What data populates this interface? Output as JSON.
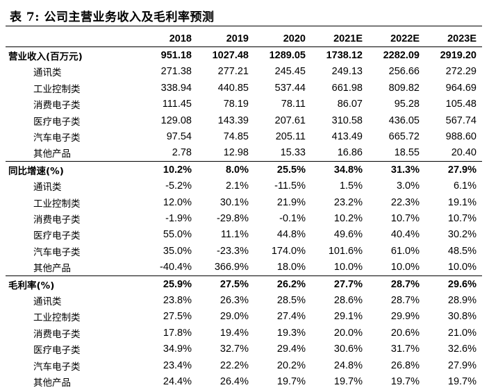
{
  "title": "表 7: 公司主营业务收入及毛利率预测",
  "years": [
    "2018",
    "2019",
    "2020",
    "2021E",
    "2022E",
    "2023E"
  ],
  "sections": [
    {
      "label": "营业收入(百万元)",
      "values": [
        "951.18",
        "1027.48",
        "1289.05",
        "1738.12",
        "2282.09",
        "2919.20"
      ],
      "rows": [
        {
          "label": "通讯类",
          "values": [
            "271.38",
            "277.21",
            "245.45",
            "249.13",
            "256.66",
            "272.29"
          ]
        },
        {
          "label": "工业控制类",
          "values": [
            "338.94",
            "440.85",
            "537.44",
            "661.98",
            "809.82",
            "964.69"
          ]
        },
        {
          "label": "消费电子类",
          "values": [
            "111.45",
            "78.19",
            "78.11",
            "86.07",
            "95.28",
            "105.48"
          ]
        },
        {
          "label": "医疗电子类",
          "values": [
            "129.08",
            "143.39",
            "207.61",
            "310.58",
            "436.05",
            "567.74"
          ]
        },
        {
          "label": "汽车电子类",
          "values": [
            "97.54",
            "74.85",
            "205.11",
            "413.49",
            "665.72",
            "988.60"
          ]
        },
        {
          "label": "其他产品",
          "values": [
            "2.78",
            "12.98",
            "15.33",
            "16.86",
            "18.55",
            "20.40"
          ]
        }
      ]
    },
    {
      "label": "同比增速(%)",
      "values": [
        "10.2%",
        "8.0%",
        "25.5%",
        "34.8%",
        "31.3%",
        "27.9%"
      ],
      "rows": [
        {
          "label": "通讯类",
          "values": [
            "-5.2%",
            "2.1%",
            "-11.5%",
            "1.5%",
            "3.0%",
            "6.1%"
          ]
        },
        {
          "label": "工业控制类",
          "values": [
            "12.0%",
            "30.1%",
            "21.9%",
            "23.2%",
            "22.3%",
            "19.1%"
          ]
        },
        {
          "label": "消费电子类",
          "values": [
            "-1.9%",
            "-29.8%",
            "-0.1%",
            "10.2%",
            "10.7%",
            "10.7%"
          ]
        },
        {
          "label": "医疗电子类",
          "values": [
            "55.0%",
            "11.1%",
            "44.8%",
            "49.6%",
            "40.4%",
            "30.2%"
          ]
        },
        {
          "label": "汽车电子类",
          "values": [
            "35.0%",
            "-23.3%",
            "174.0%",
            "101.6%",
            "61.0%",
            "48.5%"
          ]
        },
        {
          "label": "其他产品",
          "values": [
            "-40.4%",
            "366.9%",
            "18.0%",
            "10.0%",
            "10.0%",
            "10.0%"
          ]
        }
      ]
    },
    {
      "label": "毛利率(%)",
      "values": [
        "25.9%",
        "27.5%",
        "26.2%",
        "27.7%",
        "28.7%",
        "29.6%"
      ],
      "rows": [
        {
          "label": "通讯类",
          "values": [
            "23.8%",
            "26.3%",
            "28.5%",
            "28.6%",
            "28.7%",
            "28.9%"
          ]
        },
        {
          "label": "工业控制类",
          "values": [
            "27.5%",
            "29.0%",
            "27.4%",
            "29.1%",
            "29.9%",
            "30.8%"
          ]
        },
        {
          "label": "消费电子类",
          "values": [
            "17.8%",
            "19.4%",
            "19.3%",
            "20.0%",
            "20.6%",
            "21.0%"
          ]
        },
        {
          "label": "医疗电子类",
          "values": [
            "34.9%",
            "32.7%",
            "29.4%",
            "30.6%",
            "31.7%",
            "32.6%"
          ]
        },
        {
          "label": "汽车电子类",
          "values": [
            "23.4%",
            "22.2%",
            "20.2%",
            "24.8%",
            "26.8%",
            "27.9%"
          ]
        },
        {
          "label": "其他产品",
          "values": [
            "24.4%",
            "26.4%",
            "19.7%",
            "19.7%",
            "19.7%",
            "19.7%"
          ]
        }
      ]
    }
  ]
}
